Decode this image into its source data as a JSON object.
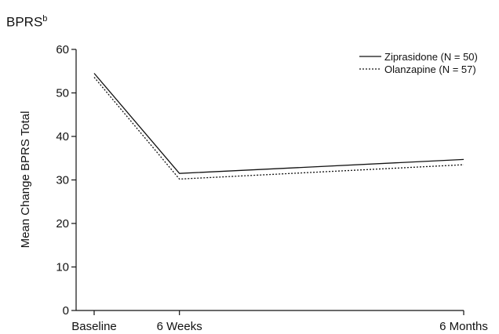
{
  "chart_data": {
    "type": "line",
    "title": "BPRS",
    "title_superscript": "b",
    "xlabel": "",
    "ylabel": "Mean Change BPRS Total",
    "categories": [
      "Baseline",
      "6 Weeks",
      "6 Months"
    ],
    "x": [
      0,
      6,
      26
    ],
    "ylim": [
      0,
      60
    ],
    "yticks": [
      0,
      10,
      20,
      30,
      40,
      50,
      60
    ],
    "grid": false,
    "legend_position": "top-right",
    "series": [
      {
        "name": "Ziprasidone (N = 50)",
        "style": "solid",
        "values": [
          54.5,
          31.5,
          34.7
        ]
      },
      {
        "name": "Olanzapine (N = 57)",
        "style": "dotted",
        "values": [
          53.6,
          30.2,
          33.5
        ]
      }
    ]
  }
}
